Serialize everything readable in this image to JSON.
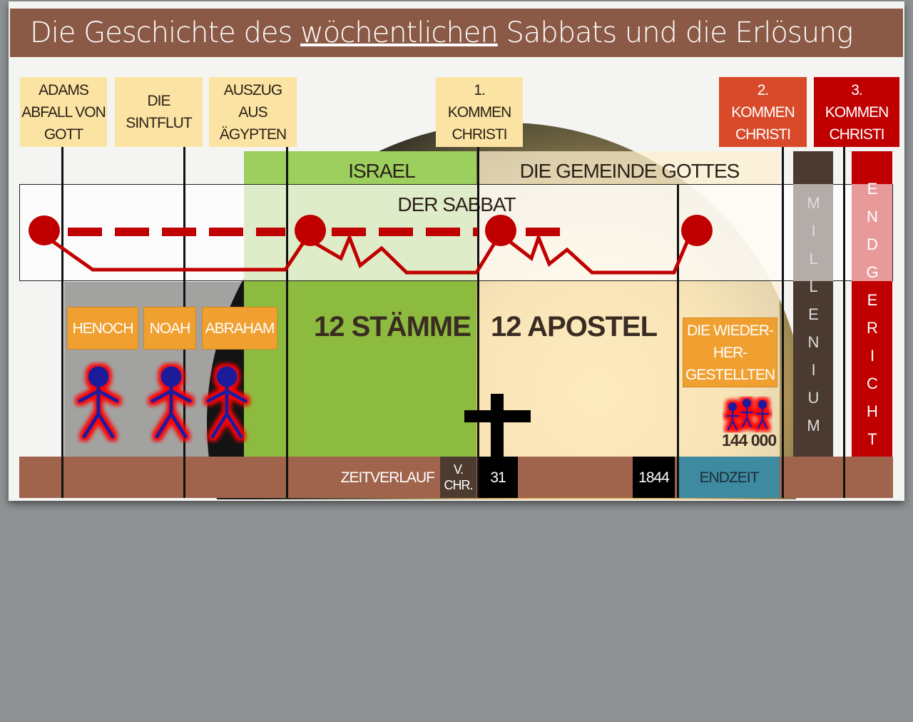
{
  "title": {
    "before": "Die Geschichte des ",
    "underlined": "wöchentlichen",
    "after": " Sabbats und die Erlösung"
  },
  "events": {
    "adam": "ADAMS ABFALL VON GOTT",
    "flood": "DIE SINTFLUT",
    "exodus": "AUSZUG AUS ÄGYPTEN",
    "first_coming": "1. KOMMEN CHRISTI",
    "second_coming": "2. KOMMEN CHRISTI",
    "third_coming": "3. KOMMEN CHRISTI"
  },
  "eras": {
    "israel": "ISRAEL",
    "church": "DIE GEMEINDE GOTTES",
    "sabbath": "DER SABBAT",
    "millennium": "MILLENIUM",
    "judgment": "ENDGERICHT"
  },
  "people": {
    "henoch": "HENOCH",
    "noah": "NOAH",
    "abraham": "ABRAHAM",
    "tribes": "12 STÄMME",
    "apostles": "12 APOSTEL",
    "restored": "DIE WIEDER-HER-GESTELLTEN",
    "count": "144 000"
  },
  "timeline": {
    "label": "ZEITVERLAUF",
    "bc": "V. CHR.",
    "year_31": "31",
    "year_1844": "1844",
    "end_time": "ENDZEIT"
  },
  "colors": {
    "title_bar": "#8b5a46",
    "event_box": "#fbe3a3",
    "second_coming": "#d84a2a",
    "third_coming": "#c00000",
    "israel": "#8dbb3f",
    "church": "#fdf0cf",
    "sabbath_line": "#c00000",
    "millennium": "#4a3a30",
    "timeline": "#a0634c",
    "end_time": "#3e8aa0"
  }
}
